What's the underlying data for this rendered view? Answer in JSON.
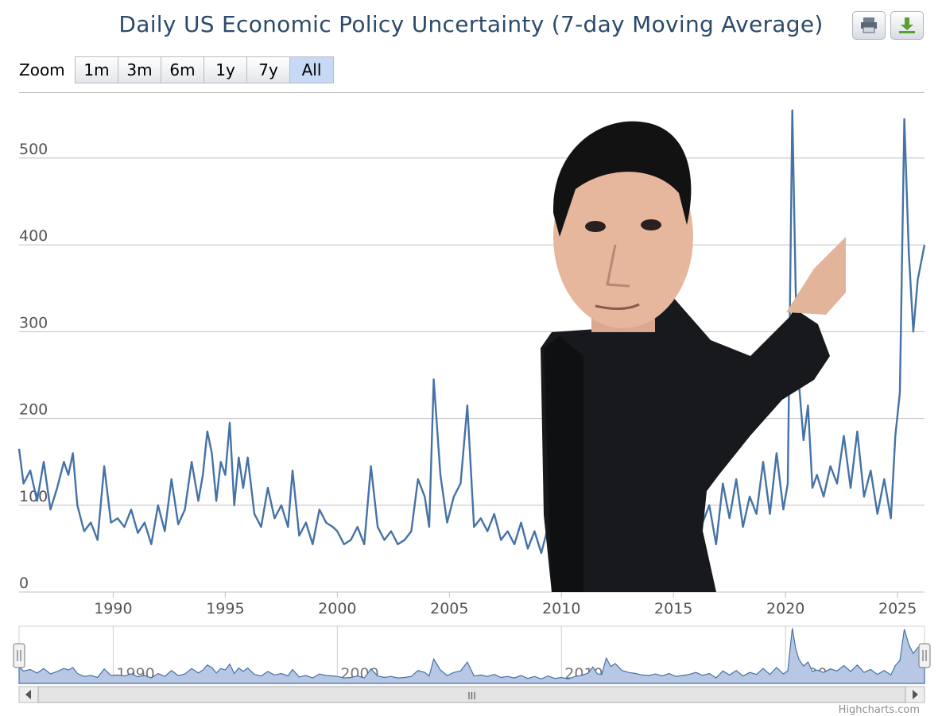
{
  "title": "Daily US Economic Policy Uncertainty (7-day Moving Average)",
  "toolbar": {
    "print_icon": "printer-icon",
    "download_icon": "download-icon"
  },
  "zoom": {
    "label": "Zoom",
    "buttons": [
      "1m",
      "3m",
      "6m",
      "1y",
      "7y",
      "All"
    ],
    "active": "All"
  },
  "navigator": {
    "scroll_label": "III"
  },
  "credits": "Highcharts.com",
  "colors": {
    "series": "#4572a7",
    "navigator_fill": "#b8c8e4",
    "grid": "#c0c0c0",
    "active_zoom": "#c7d9f5"
  },
  "chart_data": {
    "type": "line",
    "title": "Daily US Economic Policy Uncertainty (7-day Moving Average)",
    "xlabel": "",
    "ylabel": "",
    "xlim": [
      1985.8,
      2026.2
    ],
    "ylim": [
      0,
      575
    ],
    "y_ticks": [
      0,
      100,
      200,
      300,
      400,
      500
    ],
    "x_ticks": [
      1990,
      1995,
      2000,
      2005,
      2010,
      2015,
      2020,
      2025
    ],
    "grid": true,
    "legend": "none",
    "series": [
      {
        "points": [
          [
            1985.8,
            165
          ],
          [
            1986.0,
            125
          ],
          [
            1986.3,
            140
          ],
          [
            1986.6,
            105
          ],
          [
            1986.9,
            150
          ],
          [
            1987.2,
            95
          ],
          [
            1987.5,
            120
          ],
          [
            1987.8,
            150
          ],
          [
            1988.0,
            135
          ],
          [
            1988.2,
            160
          ],
          [
            1988.4,
            100
          ],
          [
            1988.7,
            70
          ],
          [
            1989.0,
            80
          ],
          [
            1989.3,
            60
          ],
          [
            1989.6,
            145
          ],
          [
            1989.9,
            80
          ],
          [
            1990.2,
            85
          ],
          [
            1990.5,
            75
          ],
          [
            1990.8,
            95
          ],
          [
            1991.1,
            68
          ],
          [
            1991.4,
            80
          ],
          [
            1991.7,
            55
          ],
          [
            1992.0,
            100
          ],
          [
            1992.3,
            70
          ],
          [
            1992.6,
            130
          ],
          [
            1992.9,
            78
          ],
          [
            1993.2,
            95
          ],
          [
            1993.5,
            150
          ],
          [
            1993.8,
            105
          ],
          [
            1994.0,
            135
          ],
          [
            1994.2,
            185
          ],
          [
            1994.4,
            160
          ],
          [
            1994.6,
            105
          ],
          [
            1994.8,
            150
          ],
          [
            1995.0,
            135
          ],
          [
            1995.2,
            195
          ],
          [
            1995.4,
            100
          ],
          [
            1995.6,
            155
          ],
          [
            1995.8,
            120
          ],
          [
            1996.0,
            155
          ],
          [
            1996.3,
            90
          ],
          [
            1996.6,
            75
          ],
          [
            1996.9,
            120
          ],
          [
            1997.2,
            85
          ],
          [
            1997.5,
            100
          ],
          [
            1997.8,
            75
          ],
          [
            1998.0,
            140
          ],
          [
            1998.3,
            65
          ],
          [
            1998.6,
            80
          ],
          [
            1998.9,
            55
          ],
          [
            1999.2,
            95
          ],
          [
            1999.5,
            80
          ],
          [
            1999.8,
            75
          ],
          [
            2000.0,
            70
          ],
          [
            2000.3,
            55
          ],
          [
            2000.6,
            60
          ],
          [
            2000.9,
            75
          ],
          [
            2001.2,
            55
          ],
          [
            2001.5,
            145
          ],
          [
            2001.8,
            75
          ],
          [
            2002.1,
            60
          ],
          [
            2002.4,
            70
          ],
          [
            2002.7,
            55
          ],
          [
            2003.0,
            60
          ],
          [
            2003.3,
            70
          ],
          [
            2003.6,
            130
          ],
          [
            2003.9,
            110
          ],
          [
            2004.1,
            75
          ],
          [
            2004.3,
            245
          ],
          [
            2004.6,
            135
          ],
          [
            2004.9,
            80
          ],
          [
            2005.2,
            110
          ],
          [
            2005.5,
            125
          ],
          [
            2005.8,
            215
          ],
          [
            2006.1,
            75
          ],
          [
            2006.4,
            85
          ],
          [
            2006.7,
            70
          ],
          [
            2007.0,
            90
          ],
          [
            2007.3,
            60
          ],
          [
            2007.6,
            70
          ],
          [
            2007.9,
            55
          ],
          [
            2008.2,
            80
          ],
          [
            2008.5,
            50
          ],
          [
            2008.8,
            70
          ],
          [
            2009.1,
            45
          ],
          [
            2009.4,
            75
          ],
          [
            2009.7,
            50
          ],
          [
            2010.0,
            60
          ],
          [
            2010.3,
            45
          ],
          [
            2010.6,
            70
          ],
          [
            2010.9,
            80
          ],
          [
            2011.2,
            105
          ],
          [
            2011.4,
            165
          ],
          [
            2011.6,
            95
          ],
          [
            2011.8,
            90
          ],
          [
            2012.0,
            255
          ],
          [
            2012.2,
            170
          ],
          [
            2012.4,
            200
          ],
          [
            2012.7,
            130
          ],
          [
            2013.0,
            110
          ],
          [
            2013.3,
            100
          ],
          [
            2013.6,
            85
          ],
          [
            2013.9,
            80
          ],
          [
            2014.2,
            95
          ],
          [
            2014.5,
            75
          ],
          [
            2014.8,
            100
          ],
          [
            2015.1,
            70
          ],
          [
            2015.4,
            80
          ],
          [
            2015.7,
            90
          ],
          [
            2016.0,
            110
          ],
          [
            2016.3,
            80
          ],
          [
            2016.6,
            100
          ],
          [
            2016.9,
            55
          ],
          [
            2017.2,
            125
          ],
          [
            2017.5,
            85
          ],
          [
            2017.8,
            130
          ],
          [
            2018.1,
            75
          ],
          [
            2018.4,
            110
          ],
          [
            2018.7,
            90
          ],
          [
            2019.0,
            150
          ],
          [
            2019.3,
            90
          ],
          [
            2019.6,
            160
          ],
          [
            2019.9,
            95
          ],
          [
            2020.1,
            125
          ],
          [
            2020.3,
            555
          ],
          [
            2020.45,
            350
          ],
          [
            2020.6,
            240
          ],
          [
            2020.8,
            175
          ],
          [
            2021.0,
            215
          ],
          [
            2021.2,
            120
          ],
          [
            2021.4,
            135
          ],
          [
            2021.7,
            110
          ],
          [
            2022.0,
            145
          ],
          [
            2022.3,
            125
          ],
          [
            2022.6,
            180
          ],
          [
            2022.9,
            120
          ],
          [
            2023.2,
            185
          ],
          [
            2023.5,
            110
          ],
          [
            2023.8,
            140
          ],
          [
            2024.1,
            90
          ],
          [
            2024.4,
            130
          ],
          [
            2024.7,
            85
          ],
          [
            2024.9,
            180
          ],
          [
            2025.1,
            230
          ],
          [
            2025.3,
            545
          ],
          [
            2025.5,
            390
          ],
          [
            2025.7,
            300
          ],
          [
            2025.9,
            360
          ],
          [
            2026.2,
            400
          ]
        ]
      }
    ]
  }
}
